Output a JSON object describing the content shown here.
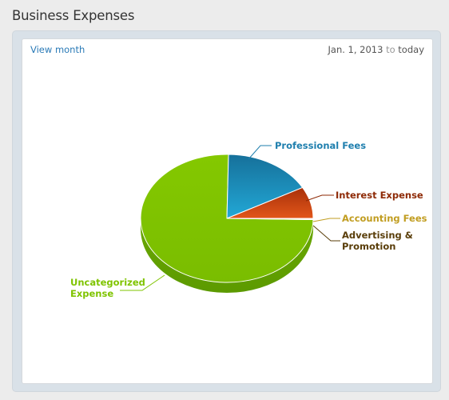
{
  "page": {
    "title": "Business Expenses"
  },
  "toolbar": {
    "view_link": "View month",
    "date_from": "Jan. 1, 2013",
    "date_sep": "to",
    "date_to": "today"
  },
  "chart_data": {
    "type": "pie",
    "three_d": true,
    "slices": [
      {
        "label": "Uncategorized Expense",
        "value": 75.0,
        "color": "#7fc400",
        "labelColor": "#7fc400"
      },
      {
        "label": "Professional Fees",
        "value": 16.7,
        "color": "#1f95c2",
        "labelColor": "#1f7fae"
      },
      {
        "label": "Interest Expense",
        "value": 8.0,
        "color": "#d9440e",
        "labelColor": "#8e2a06"
      },
      {
        "label": "Accounting Fees",
        "value": 0.15,
        "color": "#e3b12d",
        "labelColor": "#c19d20"
      },
      {
        "label": "Advertising & Promotion",
        "value": 0.15,
        "color": "#6b4a10",
        "labelColor": "#5a3e0a"
      }
    ]
  }
}
